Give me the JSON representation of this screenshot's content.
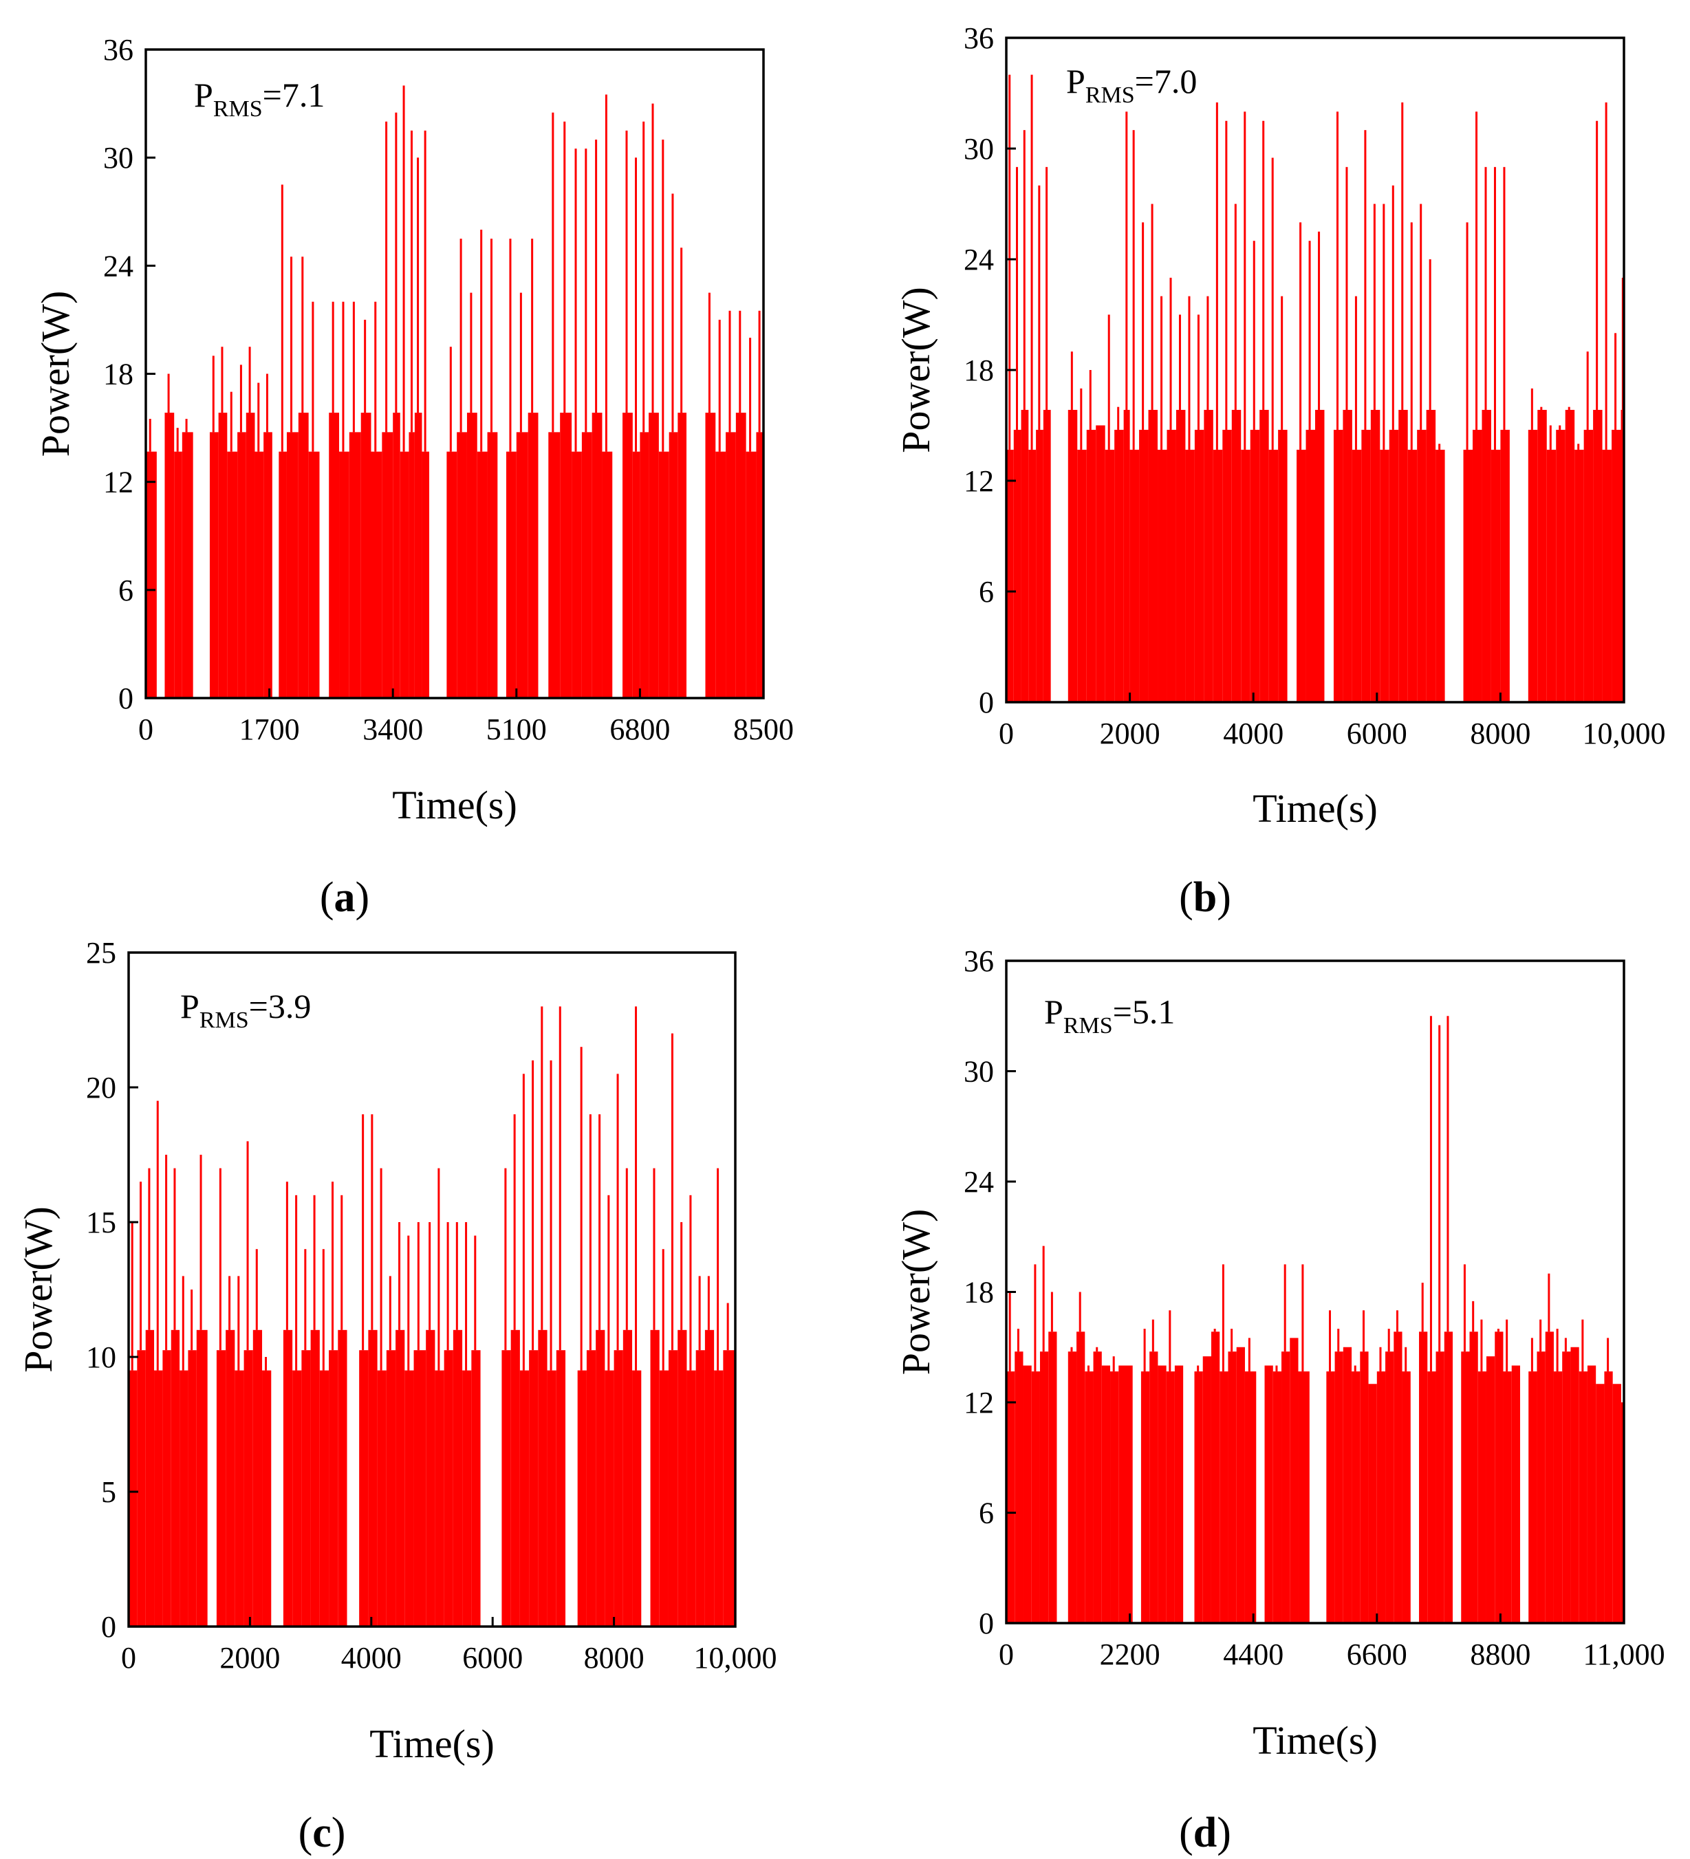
{
  "colors": {
    "trace": "#ff0000",
    "axis": "#000000"
  },
  "chart_data": [
    {
      "id": "a",
      "type": "bar",
      "panel_label": "a",
      "annotation": {
        "symbol": "P",
        "subscript": "RMS",
        "value": "=7.1"
      },
      "xlabel": "Time(s)",
      "ylabel": "Power(W)",
      "xlim": [
        0,
        8500
      ],
      "ylim": [
        0,
        36
      ],
      "xticks": [
        0,
        1700,
        3400,
        5100,
        6800,
        8500
      ],
      "xtick_labels": [
        "0",
        "1700",
        "3400",
        "5100",
        "6800",
        "8500"
      ],
      "yticks": [
        0,
        6,
        12,
        18,
        24,
        30,
        36
      ],
      "ytick_labels": [
        "0",
        "6",
        "12",
        "18",
        "24",
        "30",
        "36"
      ],
      "x": [
        0,
        150,
        260,
        390,
        500,
        650,
        780,
        880,
        1000,
        1120,
        1260,
        1380,
        1500,
        1620,
        1740,
        1830,
        1940,
        2100,
        2240,
        2390,
        2520,
        2660,
        2800,
        2960,
        3100,
        3250,
        3400,
        3500,
        3620,
        3700,
        3800,
        3900,
        4020,
        4140,
        4280,
        4420,
        4560,
        4700,
        4840,
        4960,
        5100,
        5260,
        5400,
        5540,
        5700,
        5860,
        6000,
        6140,
        6280,
        6420,
        6560,
        6700,
        6800,
        6920,
        7060,
        7200,
        7320,
        7440,
        7580,
        7700,
        7840,
        7980,
        8120,
        8260,
        8400
      ],
      "values": [
        15.5,
        0,
        18,
        15,
        15.5,
        0,
        0,
        19,
        19.5,
        17,
        18.5,
        19.5,
        17.5,
        18,
        0,
        28.5,
        24.5,
        24.5,
        22,
        0,
        22,
        22,
        22,
        21,
        22,
        32,
        32.5,
        34,
        31.5,
        30,
        31.5,
        0,
        0,
        19.5,
        25.5,
        22.5,
        26,
        25.5,
        0,
        25.5,
        22.5,
        25.5,
        0,
        32.5,
        32,
        30.5,
        30.5,
        31,
        33.5,
        0,
        31.5,
        30,
        32,
        33,
        31,
        28,
        25,
        0,
        0,
        22.5,
        21,
        21.5,
        21.5,
        20,
        21.5
      ]
    },
    {
      "id": "b",
      "type": "bar",
      "panel_label": "b",
      "annotation": {
        "symbol": "P",
        "subscript": "RMS",
        "value": "=7.0"
      },
      "xlabel": "Time(s)",
      "ylabel": "Power(W)",
      "xlim": [
        0,
        10000
      ],
      "ylim": [
        0,
        36
      ],
      "xticks": [
        0,
        2000,
        4000,
        6000,
        8000,
        10000
      ],
      "xtick_labels": [
        "0",
        "2000",
        "4000",
        "6000",
        "8000",
        "10,000"
      ],
      "yticks": [
        0,
        6,
        12,
        18,
        24,
        30,
        36
      ],
      "ytick_labels": [
        "0",
        "6",
        "12",
        "18",
        "24",
        "30",
        "36"
      ],
      "x": [
        0,
        120,
        240,
        360,
        480,
        600,
        720,
        850,
        1000,
        1150,
        1300,
        1450,
        1600,
        1750,
        1900,
        2000,
        2150,
        2300,
        2450,
        2600,
        2750,
        2900,
        3050,
        3200,
        3350,
        3500,
        3650,
        3800,
        3950,
        4100,
        4250,
        4400,
        4550,
        4700,
        4850,
        5000,
        5150,
        5300,
        5450,
        5600,
        5750,
        5900,
        6050,
        6200,
        6350,
        6500,
        6650,
        6800,
        6950,
        7100,
        7250,
        7400,
        7550,
        7700,
        7850,
        8000,
        8150,
        8300,
        8450,
        8600,
        8750,
        8900,
        9050,
        9200,
        9350,
        9500,
        9650,
        9800,
        9950
      ],
      "values": [
        34,
        29,
        31,
        34,
        28,
        29,
        0,
        0,
        19,
        17,
        18,
        15,
        21,
        16,
        32,
        31,
        26,
        27,
        22,
        23,
        21,
        22,
        21,
        22,
        32.5,
        31.5,
        27,
        32,
        25,
        31.5,
        29.5,
        22,
        0,
        26,
        25,
        25.5,
        0,
        32,
        29,
        22,
        31,
        27,
        27,
        28,
        32.5,
        26,
        27,
        24,
        14,
        0,
        0,
        26,
        32,
        29,
        29,
        29,
        0,
        0,
        17,
        16,
        15,
        15,
        16,
        14,
        19,
        31.5,
        32.5,
        20,
        23
      ]
    },
    {
      "id": "c",
      "type": "bar",
      "panel_label": "c",
      "annotation": {
        "symbol": "P",
        "subscript": "RMS",
        "value": "=3.9"
      },
      "xlabel": "Time(s)",
      "ylabel": "Power(W)",
      "xlim": [
        0,
        10000
      ],
      "ylim": [
        0,
        25
      ],
      "xticks": [
        0,
        2000,
        4000,
        6000,
        8000,
        10000
      ],
      "xtick_labels": [
        "0",
        "2000",
        "4000",
        "6000",
        "8000",
        "10,000"
      ],
      "yticks": [
        0,
        5,
        10,
        15,
        20,
        25
      ],
      "ytick_labels": [
        "0",
        "5",
        "10",
        "15",
        "20",
        "25"
      ],
      "x": [
        0,
        140,
        280,
        420,
        560,
        700,
        840,
        980,
        1120,
        1300,
        1450,
        1600,
        1750,
        1900,
        2050,
        2200,
        2350,
        2550,
        2700,
        2850,
        3000,
        3150,
        3300,
        3450,
        3600,
        3800,
        3950,
        4100,
        4250,
        4400,
        4550,
        4700,
        4900,
        5050,
        5200,
        5350,
        5500,
        5650,
        5800,
        5950,
        6150,
        6300,
        6450,
        6600,
        6750,
        6900,
        7050,
        7200,
        7400,
        7550,
        7700,
        7850,
        8000,
        8150,
        8300,
        8450,
        8600,
        8750,
        8900,
        9050,
        9200,
        9350,
        9500,
        9650,
        9800
      ],
      "values": [
        15,
        16.5,
        17,
        19.5,
        17.5,
        17,
        13,
        12.5,
        17.5,
        0,
        17,
        13,
        13,
        18,
        14,
        10,
        0,
        16.5,
        16,
        14,
        16,
        14,
        16.5,
        16,
        0,
        19,
        19,
        17,
        13,
        15,
        14.5,
        15,
        15,
        17,
        15,
        15,
        15,
        14.5,
        0,
        0,
        17,
        19,
        20.5,
        21,
        23,
        21,
        23,
        0,
        21.5,
        19,
        19,
        16,
        20.5,
        17,
        23,
        0,
        17,
        14,
        22,
        15,
        16,
        13,
        13,
        17,
        12
      ]
    },
    {
      "id": "d",
      "type": "bar",
      "panel_label": "d",
      "annotation": {
        "symbol": "P",
        "subscript": "RMS",
        "value": "=5.1"
      },
      "xlabel": "Time(s)",
      "ylabel": "Power(W)",
      "xlim": [
        0,
        11000
      ],
      "ylim": [
        0,
        36
      ],
      "xticks": [
        0,
        2200,
        4400,
        6600,
        8800,
        11000
      ],
      "xtick_labels": [
        "0",
        "2200",
        "4400",
        "6600",
        "8800",
        "11,000"
      ],
      "yticks": [
        0,
        6,
        12,
        18,
        24,
        30,
        36
      ],
      "ytick_labels": [
        "0",
        "6",
        "12",
        "18",
        "24",
        "30",
        "36"
      ],
      "x": [
        0,
        150,
        300,
        450,
        600,
        750,
        900,
        1100,
        1250,
        1400,
        1550,
        1700,
        1850,
        2000,
        2250,
        2400,
        2550,
        2700,
        2850,
        3000,
        3150,
        3350,
        3500,
        3650,
        3800,
        3950,
        4100,
        4250,
        4450,
        4600,
        4750,
        4900,
        5050,
        5200,
        5400,
        5550,
        5700,
        5850,
        6000,
        6150,
        6300,
        6450,
        6600,
        6750,
        6900,
        7050,
        7200,
        7350,
        7500,
        7650,
        7800,
        7950,
        8100,
        8250,
        8400,
        8550,
        8700,
        8850,
        9000,
        9150,
        9300,
        9450,
        9600,
        9750,
        9900,
        10050,
        10200,
        10350,
        10500,
        10650,
        10800,
        10950
      ],
      "values": [
        18,
        16,
        14,
        19.5,
        20.5,
        18,
        0,
        15,
        18,
        14,
        15,
        14,
        14.5,
        14,
        0,
        16,
        16.5,
        14,
        17,
        14,
        0,
        14,
        14.5,
        16,
        19.5,
        16,
        15,
        15.5,
        0,
        14,
        14,
        19.5,
        15.5,
        19.5,
        0,
        0,
        17,
        16,
        15,
        14,
        17,
        13,
        15,
        16,
        17,
        15,
        0,
        18.5,
        33,
        32.5,
        33,
        0,
        19.5,
        17.5,
        16.5,
        14.5,
        16,
        16.5,
        14,
        0,
        15.5,
        16.5,
        19,
        16,
        15.5,
        15,
        16.5,
        14,
        13,
        15.5,
        13,
        12
      ]
    }
  ]
}
